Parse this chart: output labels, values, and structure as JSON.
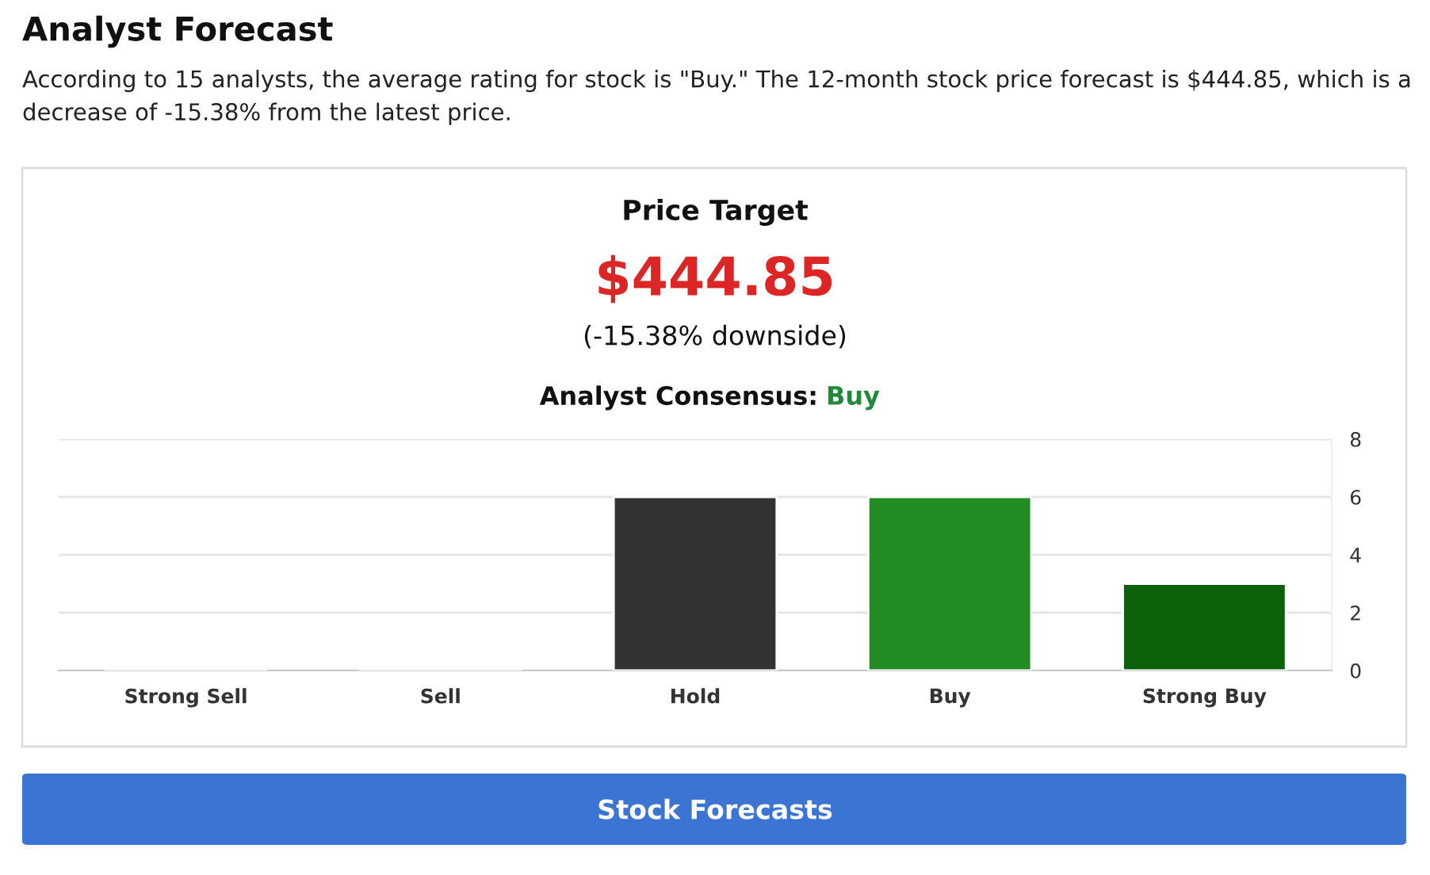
{
  "chart_data": {
    "type": "bar",
    "title": "Analyst Forecast",
    "subtitle": "According to 15 analysts, the average rating for stock is \"Buy.\" The 12-month stock price forecast is $444.85, which is a decrease of -15.38% from the latest price.",
    "annotations": [
      "Price Target",
      "$444.85",
      "(-15.38% downside)",
      "Analyst Consensus:",
      "Buy",
      "Stock Forecasts"
    ],
    "categories": [
      "Strong Sell",
      "Sell",
      "Hold",
      "Buy",
      "Strong Buy"
    ],
    "values": [
      0,
      0,
      6,
      6,
      3
    ],
    "colors": [
      null,
      null,
      "#333333",
      "#228b22",
      "#0b620b"
    ],
    "ylim": [
      0,
      8
    ],
    "yticks": [
      0,
      2,
      4,
      6,
      8
    ],
    "grid": "y",
    "legend": false
  }
}
